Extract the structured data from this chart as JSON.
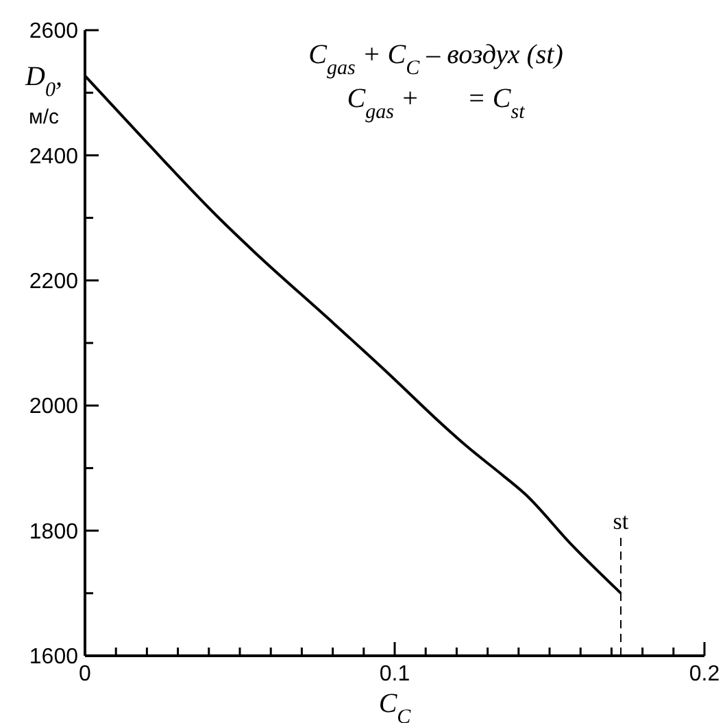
{
  "chart_data": {
    "type": "line",
    "xlabel": "C$_{C}$",
    "ylabel": "D$_{0}$, м/с",
    "annotations": [
      "C$_{gas}$ + C$_{C}$ – воздух (st)",
      "C$_{gas}$ +       = C$_{st}$"
    ],
    "x": [
      0,
      0.018,
      0.0434,
      0.055,
      0.0788,
      0.098,
      0.1155,
      0.123,
      0.135,
      0.142,
      0.157,
      0.173
    ],
    "series": [
      {
        "color": "#000000",
        "values": [
          2527,
          2431,
          2299,
          2244,
          2138,
          2051,
          1969,
          1936,
          1888,
          1859,
          1778,
          1700
        ]
      }
    ],
    "xlim": [
      0,
      0.2
    ],
    "xticks": [
      0,
      {
        "value": 0.01,
        "label": null
      },
      {
        "value": 0.02,
        "label": null
      },
      {
        "value": 0.03,
        "label": null
      },
      {
        "value": 0.04,
        "label": null
      },
      {
        "value": 0.05,
        "label": null
      },
      {
        "value": 0.06,
        "label": null
      },
      {
        "value": 0.07,
        "label": null
      },
      {
        "value": 0.08,
        "label": null
      },
      {
        "value": 0.09,
        "label": null
      },
      0.1,
      {
        "value": 0.11,
        "label": null
      },
      {
        "value": 0.12,
        "label": null
      },
      {
        "value": 0.13,
        "label": null
      },
      {
        "value": 0.14,
        "label": null
      },
      {
        "value": 0.15,
        "label": null
      },
      {
        "value": 0.16,
        "label": null
      },
      {
        "value": 0.17,
        "label": null
      },
      {
        "value": 0.18,
        "label": null
      },
      {
        "value": 0.19,
        "label": null
      },
      0.2
    ],
    "ylim": [
      1600,
      2600
    ],
    "yticks": [
      1600,
      {
        "value": 1700,
        "label": null
      },
      1800,
      {
        "value": 1900,
        "label": null
      },
      2000,
      {
        "value": 2100,
        "label": null
      },
      2200,
      {
        "value": 2300,
        "label": null
      },
      2400,
      {
        "value": 2500,
        "label": null
      },
      2600
    ],
    "ref_lines": [
      {
        "axis": "x",
        "value": 0.173,
        "label": "st",
        "line_style": "dashed",
        "color": "#000000"
      }
    ],
    "line_style": "solid"
  }
}
